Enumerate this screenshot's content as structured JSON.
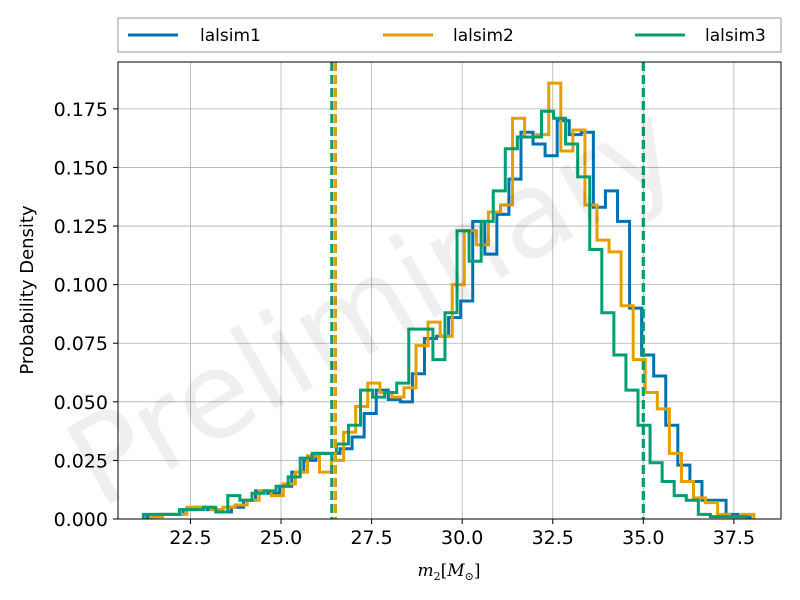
{
  "chart_data": {
    "type": "histogram",
    "xlabel": "m_2[M_⊙]",
    "xlabel_parts": {
      "base": "m",
      "sub": "2",
      "open": "[",
      "mass": "M",
      "mass_sub": "⊙",
      "close": "]"
    },
    "ylabel": "Probability Density",
    "watermark": "Preliminary",
    "xlim": [
      20.5,
      38.8
    ],
    "ylim": [
      0,
      0.195
    ],
    "x_ticks": [
      22.5,
      25.0,
      27.5,
      30.0,
      32.5,
      35.0,
      37.5
    ],
    "x_tick_labels": [
      "22.5",
      "25.0",
      "27.5",
      "30.0",
      "32.5",
      "35.0",
      "37.5"
    ],
    "y_ticks": [
      0,
      0.025,
      0.05,
      0.075,
      0.1,
      0.125,
      0.15,
      0.175
    ],
    "y_tick_labels": [
      "0.000",
      "0.025",
      "0.050",
      "0.075",
      "0.100",
      "0.125",
      "0.150",
      "0.175"
    ],
    "grid": true,
    "legend_position": "top, above plot, 3 columns",
    "series": [
      {
        "name": "lalsim1",
        "color": "#0072b2",
        "bin_start": 21.3,
        "bin_width": 0.333,
        "values": [
          0.001,
          0.002,
          0.002,
          0.004,
          0.005,
          0.004,
          0.003,
          0.005,
          0.008,
          0.012,
          0.011,
          0.014,
          0.02,
          0.025,
          0.028,
          0.028,
          0.03,
          0.035,
          0.045,
          0.055,
          0.051,
          0.05,
          0.062,
          0.077,
          0.078,
          0.086,
          0.093,
          0.127,
          0.113,
          0.13,
          0.145,
          0.165,
          0.16,
          0.155,
          0.17,
          0.164,
          0.165,
          0.133,
          0.14,
          0.127,
          0.09,
          0.07,
          0.061,
          0.04,
          0.023,
          0.016,
          0.008,
          0.008,
          0.002,
          0.001
        ],
        "lines": [
          26.5,
          35.0
        ]
      },
      {
        "name": "lalsim2",
        "color": "#e69f00",
        "bin_start": 21.4,
        "bin_width": 0.333,
        "values": [
          0.001,
          0.002,
          0.002,
          0.005,
          0.005,
          0.004,
          0.005,
          0.006,
          0.008,
          0.012,
          0.01,
          0.015,
          0.02,
          0.027,
          0.02,
          0.025,
          0.037,
          0.048,
          0.058,
          0.054,
          0.052,
          0.056,
          0.074,
          0.084,
          0.078,
          0.1,
          0.123,
          0.117,
          0.131,
          0.134,
          0.171,
          0.163,
          0.164,
          0.186,
          0.157,
          0.166,
          0.134,
          0.119,
          0.114,
          0.091,
          0.068,
          0.054,
          0.047,
          0.028,
          0.016,
          0.009,
          0.007,
          0.002,
          0.001,
          0.002
        ],
        "lines": [
          26.5,
          35.0
        ]
      },
      {
        "name": "lalsim3",
        "color": "#009e73",
        "bin_start": 21.2,
        "bin_width": 0.333,
        "values": [
          0.002,
          0.002,
          0.002,
          0.004,
          0.004,
          0.005,
          0.003,
          0.01,
          0.008,
          0.011,
          0.012,
          0.014,
          0.018,
          0.026,
          0.028,
          0.028,
          0.032,
          0.04,
          0.055,
          0.052,
          0.054,
          0.058,
          0.081,
          0.081,
          0.068,
          0.088,
          0.123,
          0.11,
          0.127,
          0.14,
          0.158,
          0.163,
          0.163,
          0.174,
          0.171,
          0.16,
          0.146,
          0.115,
          0.088,
          0.07,
          0.055,
          0.04,
          0.024,
          0.016,
          0.01,
          0.008,
          0.002,
          0.001,
          0.001,
          0.001
        ],
        "lines": [
          26.4,
          35.0
        ]
      }
    ]
  }
}
